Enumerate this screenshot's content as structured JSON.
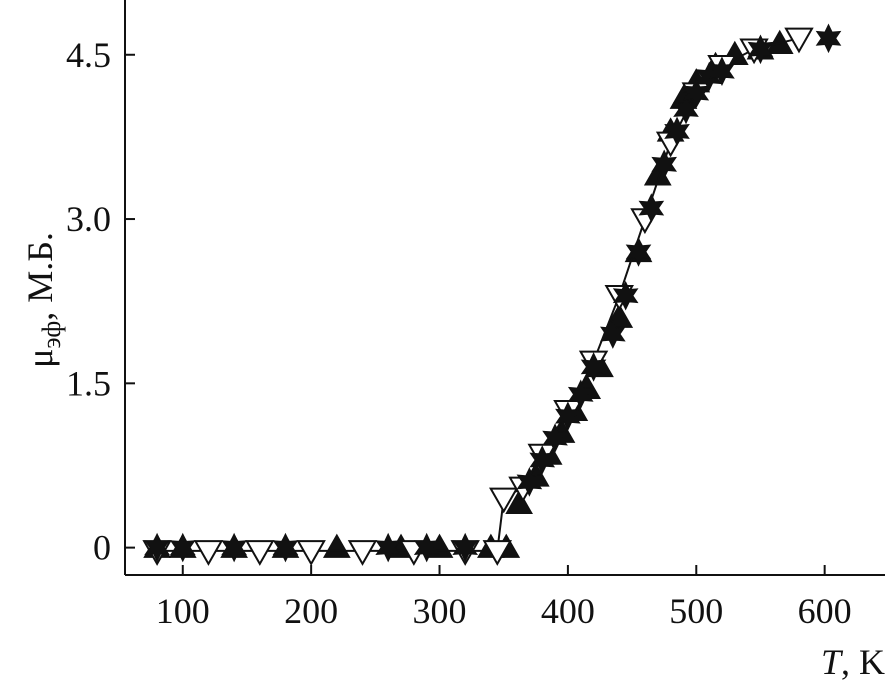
{
  "chart_data": {
    "type": "scatter",
    "x_label": {
      "symbol": "T",
      "rest": ", K"
    },
    "y_label": {
      "symbol": "μ",
      "subscript": "эф",
      "rest": ", М.Б."
    },
    "xlim": [
      55,
      647
    ],
    "ylim": [
      -0.25,
      5
    ],
    "xticks": [
      100,
      200,
      300,
      400,
      500,
      600
    ],
    "yticks": [
      0,
      1.5,
      {
        "value": 3,
        "label": "3.0"
      },
      4.5
    ],
    "series": [
      {
        "marker": "triangle-up",
        "color": "#111111",
        "line": false,
        "x": [
          80,
          100,
          140,
          180,
          220,
          270,
          300,
          340,
          352,
          362,
          375,
          385,
          395,
          405,
          415,
          425,
          440,
          455,
          470,
          480,
          490,
          500,
          515,
          530,
          550,
          565
        ],
        "values": [
          0,
          0,
          0,
          0,
          0,
          0,
          0,
          0,
          0,
          0.4,
          0.65,
          0.85,
          1.05,
          1.25,
          1.45,
          1.65,
          2.1,
          2.7,
          3.4,
          3.8,
          4.1,
          4.25,
          4.4,
          4.5,
          4.55,
          4.6
        ]
      },
      {
        "marker": "triangle-down",
        "color": "#111111",
        "line": true,
        "x": [
          80,
          120,
          160,
          200,
          240,
          280,
          320,
          345,
          350,
          365,
          380,
          400,
          420,
          440,
          460,
          480,
          500,
          520,
          545,
          580
        ],
        "values": [
          -0.03,
          -0.03,
          -0.03,
          -0.03,
          -0.03,
          -0.03,
          -0.03,
          -0.03,
          0.45,
          0.55,
          0.85,
          1.25,
          1.7,
          2.3,
          3.0,
          3.7,
          4.15,
          4.4,
          4.55,
          4.65
        ]
      },
      {
        "marker": "star",
        "color": "#111111",
        "line": false,
        "x": [
          80,
          100,
          140,
          180,
          260,
          290,
          320,
          370,
          380,
          390,
          400,
          410,
          420,
          435,
          445,
          455,
          465,
          475,
          485,
          492,
          500,
          510,
          520,
          550,
          603
        ],
        "values": [
          0,
          0,
          0,
          0,
          0,
          0,
          0,
          0.6,
          0.8,
          1.0,
          1.2,
          1.4,
          1.65,
          1.95,
          2.3,
          2.7,
          3.1,
          3.5,
          3.8,
          4.0,
          4.15,
          4.3,
          4.35,
          4.55,
          4.65
        ]
      }
    ]
  }
}
